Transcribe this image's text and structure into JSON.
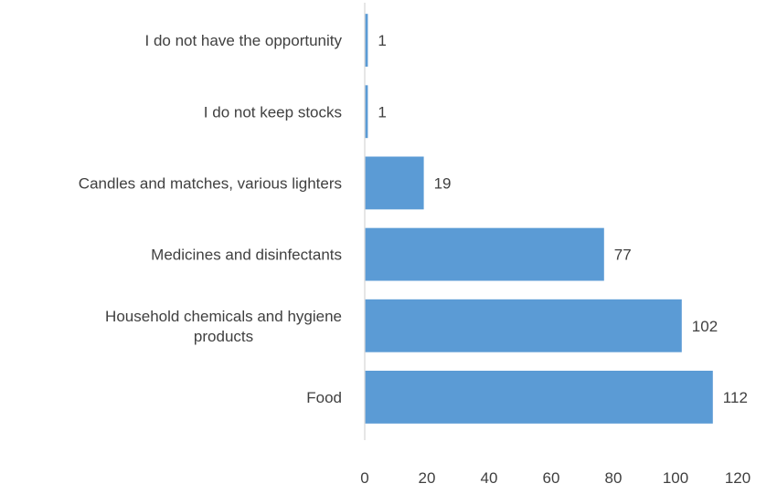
{
  "chart_data": {
    "type": "bar",
    "orientation": "horizontal",
    "categories": [
      "I do not have the opportunity",
      "I do not keep stocks",
      "Candles and matches, various lighters",
      "Medicines and disinfectants",
      "Household chemicals and hygiene products",
      "Food"
    ],
    "category_lines": [
      [
        "I do not have the opportunity"
      ],
      [
        "I do not keep stocks"
      ],
      [
        "Candles and matches, various lighters"
      ],
      [
        "Medicines and disinfectants"
      ],
      [
        "Household chemicals and hygiene",
        "products"
      ],
      [
        "Food"
      ]
    ],
    "values": [
      1,
      1,
      19,
      77,
      102,
      112
    ],
    "data_labels": [
      "1",
      "1",
      "19",
      "77",
      "102",
      "112"
    ],
    "xlim": [
      0,
      120
    ],
    "x_ticks": [
      0,
      20,
      40,
      60,
      80,
      100,
      120
    ],
    "x_tick_labels": [
      "0",
      "20",
      "40",
      "60",
      "80",
      "100",
      "120"
    ],
    "grid": false,
    "legend": "none",
    "bar_color": "#5b9bd5",
    "axis_color": "#d9d9d9",
    "text_color": "#404040"
  }
}
